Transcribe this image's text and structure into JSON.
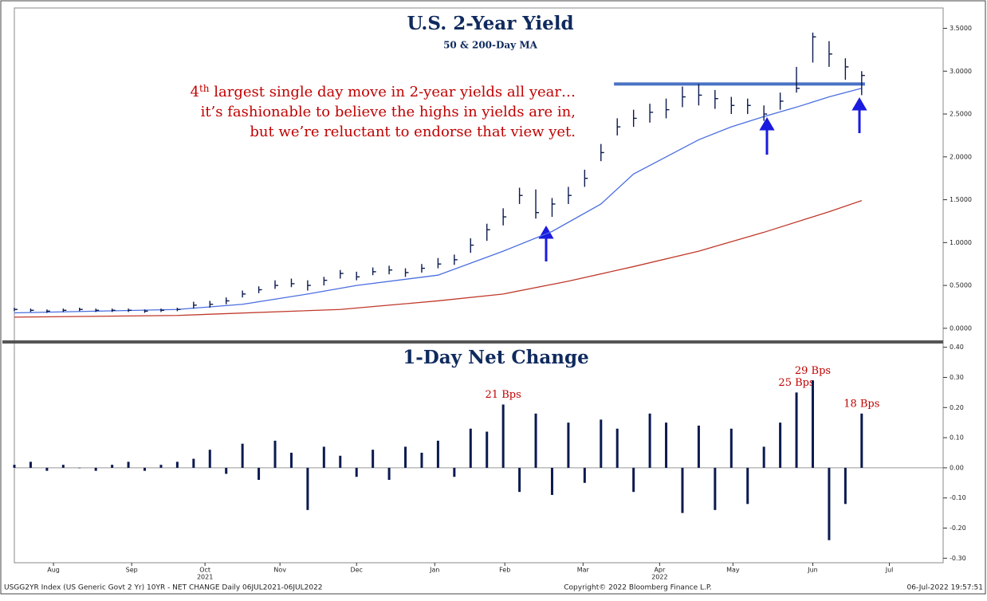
{
  "chart_data": [
    {
      "type": "ohlc",
      "title": "U.S. 2-Year Yield",
      "subtitle": "50 & 200-Day MA",
      "annotation": [
        [
          "4",
          "th",
          " largest single day move in 2-year yields all year…"
        ],
        "it’s fashionable to believe the highs in yields are in,",
        "but we’re reluctant to endorse that view yet."
      ],
      "color": "#0b1a4f",
      "high": [
        0.24,
        0.23,
        0.22,
        0.23,
        0.24,
        0.23,
        0.23,
        0.23,
        0.22,
        0.23,
        0.24,
        0.31,
        0.32,
        0.36,
        0.44,
        0.49,
        0.56,
        0.58,
        0.56,
        0.6,
        0.68,
        0.66,
        0.71,
        0.73,
        0.7,
        0.75,
        0.82,
        0.86,
        1.05,
        1.22,
        1.4,
        1.64,
        1.62,
        1.52,
        1.65,
        1.85,
        2.15,
        2.45,
        2.55,
        2.62,
        2.68,
        2.82,
        2.85,
        2.78,
        2.7,
        2.68,
        2.6,
        2.75,
        3.05,
        3.45,
        3.35,
        3.15,
        3.0
      ],
      "low": [
        0.2,
        0.19,
        0.18,
        0.19,
        0.2,
        0.19,
        0.19,
        0.19,
        0.18,
        0.19,
        0.2,
        0.23,
        0.24,
        0.28,
        0.36,
        0.41,
        0.46,
        0.48,
        0.44,
        0.5,
        0.58,
        0.56,
        0.62,
        0.63,
        0.6,
        0.65,
        0.7,
        0.74,
        0.88,
        1.02,
        1.2,
        1.45,
        1.28,
        1.3,
        1.45,
        1.65,
        1.95,
        2.25,
        2.35,
        2.4,
        2.45,
        2.58,
        2.6,
        2.56,
        2.5,
        2.5,
        2.42,
        2.55,
        2.75,
        3.1,
        3.05,
        2.9,
        2.72
      ],
      "close": [
        0.22,
        0.21,
        0.2,
        0.21,
        0.22,
        0.21,
        0.21,
        0.21,
        0.2,
        0.21,
        0.22,
        0.27,
        0.28,
        0.32,
        0.4,
        0.45,
        0.5,
        0.52,
        0.5,
        0.56,
        0.64,
        0.6,
        0.66,
        0.68,
        0.65,
        0.7,
        0.75,
        0.8,
        0.97,
        1.15,
        1.3,
        1.55,
        1.35,
        1.45,
        1.55,
        1.75,
        2.05,
        2.35,
        2.45,
        2.52,
        2.55,
        2.7,
        2.72,
        2.68,
        2.6,
        2.6,
        2.5,
        2.65,
        2.8,
        3.4,
        3.2,
        3.05,
        2.95
      ],
      "ma_lines": [
        {
          "color": "#4a6ee0",
          "x": [
            0,
            5,
            10,
            14,
            18,
            21,
            26,
            30,
            33,
            36,
            38,
            40,
            42,
            44,
            46,
            48,
            50,
            52
          ],
          "values": [
            0.18,
            0.2,
            0.22,
            0.28,
            0.4,
            0.5,
            0.62,
            0.9,
            1.13,
            1.45,
            1.8,
            2.0,
            2.2,
            2.35,
            2.47,
            2.58,
            2.7,
            2.8
          ]
        },
        {
          "color": "#c0392b",
          "x": [
            0,
            10,
            20,
            26,
            30,
            34,
            38,
            42,
            46,
            50,
            52
          ],
          "values": [
            0.13,
            0.15,
            0.22,
            0.32,
            0.4,
            0.55,
            0.72,
            0.9,
            1.12,
            1.36,
            1.49
          ]
        }
      ],
      "hline": {
        "value": 2.85,
        "x": [
          36.8,
          52.2
        ],
        "color": "#4a72c4"
      },
      "xlim": [
        0,
        57
      ],
      "ylim": [
        -0.15,
        3.7
      ],
      "yticks": [
        {
          "value": 0,
          "label": "0.0000"
        },
        {
          "value": 0.5,
          "label": "0.5000"
        },
        {
          "value": 1,
          "label": "1.0000"
        },
        {
          "value": 1.5,
          "label": "1.5000"
        },
        {
          "value": 2,
          "label": "2.0000"
        },
        {
          "value": 2.5,
          "label": "2.5000"
        },
        {
          "value": 3,
          "label": "3.0000"
        },
        {
          "value": 3.5,
          "label": "3.5000"
        }
      ],
      "grid": false
    },
    {
      "type": "bar",
      "title": "1-Day Net Change",
      "color": "#0b1a4f",
      "values": [
        0.01,
        0.02,
        -0.01,
        0.01,
        0.0,
        -0.01,
        0.01,
        0.02,
        -0.01,
        0.01,
        0.02,
        0.03,
        0.06,
        -0.02,
        0.08,
        -0.04,
        0.09,
        0.05,
        -0.14,
        0.07,
        0.04,
        -0.03,
        0.06,
        -0.04,
        0.07,
        0.05,
        0.09,
        -0.03,
        0.13,
        0.12,
        0.21,
        -0.08,
        0.18,
        -0.09,
        0.15,
        -0.05,
        0.16,
        0.13,
        -0.08,
        0.18,
        0.15,
        -0.15,
        0.14,
        -0.14,
        0.13,
        -0.12,
        0.07,
        0.15,
        0.25,
        0.29,
        -0.24,
        -0.12,
        0.18
      ],
      "value_labels": [
        null,
        null,
        null,
        null,
        null,
        null,
        null,
        null,
        null,
        null,
        null,
        null,
        null,
        null,
        null,
        null,
        null,
        null,
        null,
        null,
        null,
        null,
        null,
        null,
        null,
        null,
        null,
        null,
        null,
        null,
        "21 Bps",
        null,
        null,
        null,
        null,
        null,
        null,
        null,
        null,
        null,
        null,
        null,
        null,
        null,
        null,
        null,
        null,
        null,
        "25 Bps",
        "29 Bps",
        null,
        null,
        "18 Bps"
      ],
      "xlim": [
        0,
        57
      ],
      "ylim": [
        -0.315,
        0.415
      ],
      "yticks": [
        {
          "value": -0.3,
          "label": "-0.30"
        },
        {
          "value": -0.2,
          "label": "-0.20"
        },
        {
          "value": -0.1,
          "label": "-0.10"
        },
        {
          "value": 0,
          "label": "0.00"
        },
        {
          "value": 0.1,
          "label": "0.10"
        },
        {
          "value": 0.2,
          "label": "0.20"
        },
        {
          "value": 0.3,
          "label": "0.30"
        },
        {
          "value": 0.4,
          "label": "0.40"
        }
      ],
      "xticks": [
        {
          "value": 2.4,
          "label": "Aug"
        },
        {
          "value": 7.2,
          "label": "Sep"
        },
        {
          "value": 11.7,
          "label": "Oct"
        },
        {
          "value": 16.3,
          "label": "Nov"
        },
        {
          "value": 21.0,
          "label": "Dec"
        },
        {
          "value": 25.8,
          "label": "Jan"
        },
        {
          "value": 30.1,
          "label": "Feb"
        },
        {
          "value": 34.9,
          "label": "Mar"
        },
        {
          "value": 39.6,
          "label": "Apr"
        },
        {
          "value": 44.1,
          "label": "May"
        },
        {
          "value": 49.0,
          "label": "Jun"
        },
        {
          "value": 53.7,
          "label": "Jul"
        }
      ],
      "year_labels": [
        {
          "value": 11.7,
          "label": "2021"
        },
        {
          "value": 39.6,
          "label": "2022"
        }
      ],
      "grid": false
    }
  ],
  "footer": {
    "left": "USGG2YR Index (US Generic Govt 2 Yr) 10YR - NET CHANGE  Daily 06JUL2021-06JUL2022",
    "center": "Copyright© 2022 Bloomberg Finance L.P.",
    "right": "06-Jul-2022 19:57:51"
  }
}
